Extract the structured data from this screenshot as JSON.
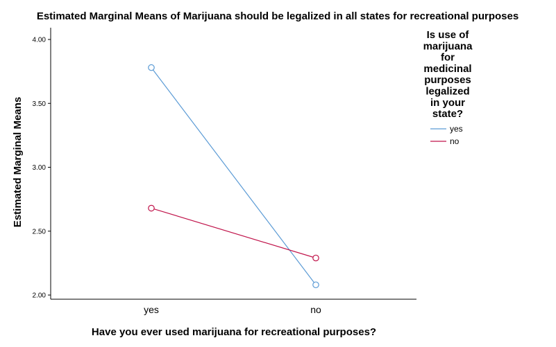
{
  "chart_data": {
    "type": "line",
    "title": "Estimated Marginal Means of Marijuana should be legalized in all states for recreational purposes",
    "xlabel": "Have you ever used marijuana for recreational purposes?",
    "ylabel": "Estimated Marginal Means",
    "categories": [
      "yes",
      "no"
    ],
    "ylim": [
      2.0,
      4.0
    ],
    "yticks": [
      "2.00",
      "2.50",
      "3.00",
      "3.50",
      "4.00"
    ],
    "ytick_values": [
      2.0,
      2.5,
      3.0,
      3.5,
      4.0
    ],
    "grid": false,
    "legend": {
      "title_lines": [
        "Is use of",
        "marijuana",
        "for",
        "medicinal",
        "purposes",
        "legalized",
        "in your",
        "state?"
      ],
      "placement": "right"
    },
    "series": [
      {
        "name": "yes",
        "values": [
          3.78,
          2.08
        ],
        "color": "#5b9bd5"
      },
      {
        "name": "no",
        "values": [
          2.68,
          2.29
        ],
        "color": "#c0134a"
      }
    ]
  }
}
